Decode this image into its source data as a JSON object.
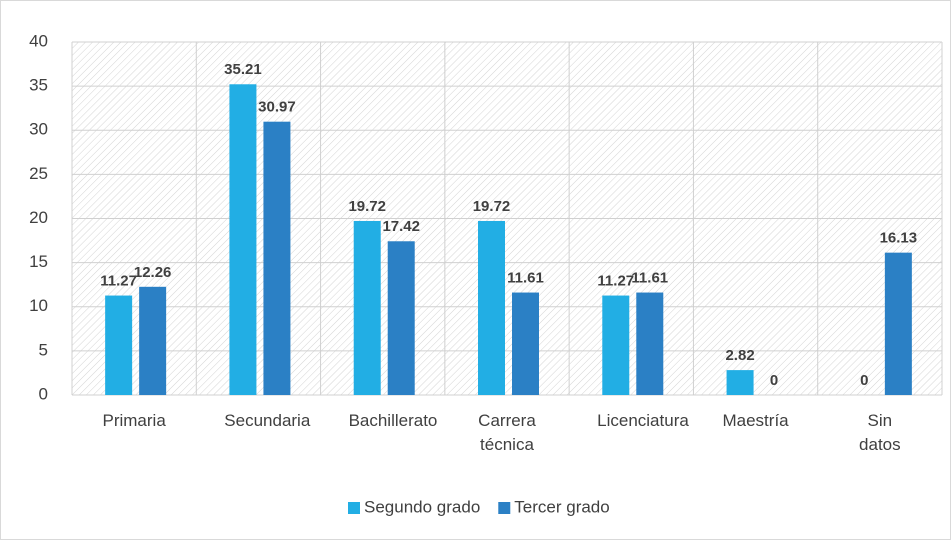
{
  "chart_data": {
    "type": "bar",
    "categories": [
      "Primaria",
      "Secundaria",
      "Bachillerato",
      "Carrera técnica",
      "Licenciatura",
      "Maestría",
      "Sin datos"
    ],
    "series": [
      {
        "name": "Segundo grado",
        "color": "#22aee4",
        "values": [
          11.27,
          35.21,
          19.72,
          19.72,
          11.27,
          2.82,
          0
        ]
      },
      {
        "name": "Tercer grado",
        "color": "#2b80c5",
        "values": [
          12.26,
          30.97,
          17.42,
          11.61,
          11.61,
          0,
          16.13
        ]
      }
    ],
    "ylim": [
      0,
      40
    ],
    "yticks": [
      0,
      5,
      10,
      15,
      20,
      25,
      30,
      35,
      40
    ],
    "grid": true,
    "legend": "bottom"
  }
}
